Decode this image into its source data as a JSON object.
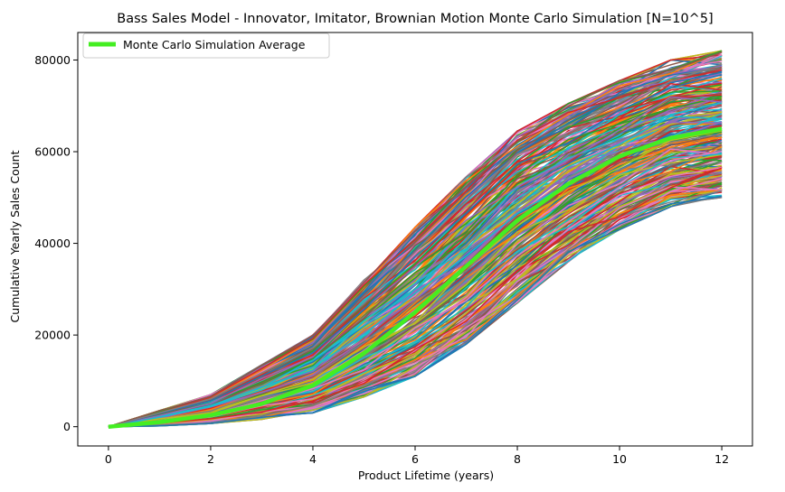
{
  "chart_data": {
    "type": "line",
    "title": "Bass Sales Model - Innovator, Imitator, Brownian Motion Monte Carlo Simulation [N=10^5]",
    "xlabel": "Product Lifetime (years)",
    "ylabel": "Cumulative Yearly Sales Count",
    "xlim": [
      -0.6,
      12.6
    ],
    "ylim": [
      -4200,
      86000
    ],
    "xticks": [
      0,
      2,
      4,
      6,
      8,
      10,
      12
    ],
    "yticks": [
      0,
      20000,
      40000,
      60000,
      80000
    ],
    "legend_position": "top-left",
    "legend_entries": [
      "Monte Carlo Simulation Average"
    ],
    "x": [
      0,
      1,
      2,
      3,
      4,
      5,
      6,
      7,
      8,
      9,
      10,
      11,
      12
    ],
    "average_series": {
      "name": "Monte Carlo Simulation Average",
      "color": "#44ee22",
      "values": [
        0,
        1000,
        2500,
        5000,
        9000,
        16000,
        25000,
        35000,
        45000,
        53000,
        59000,
        63000,
        65000
      ]
    },
    "envelope": {
      "low": [
        0,
        200,
        700,
        1600,
        3000,
        6500,
        11000,
        18000,
        27000,
        36000,
        43000,
        48000,
        50000
      ],
      "high": [
        0,
        3500,
        7000,
        13500,
        20000,
        32000,
        43500,
        54500,
        64500,
        70500,
        75500,
        80000,
        82000
      ]
    },
    "simulation_colors": [
      "#1f77b4",
      "#ff7f0e",
      "#2ca02c",
      "#d62728",
      "#9467bd",
      "#8c564b",
      "#e377c2",
      "#7f7f7f",
      "#bcbd22",
      "#17becf"
    ]
  }
}
